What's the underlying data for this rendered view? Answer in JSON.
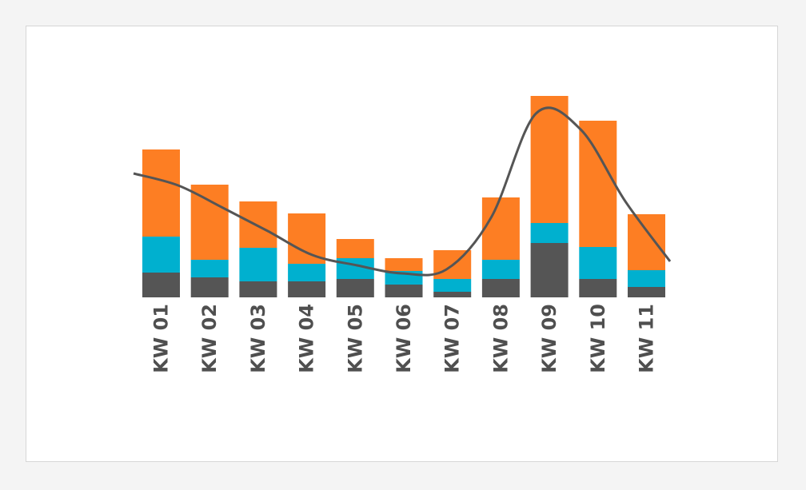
{
  "chart_data": {
    "type": "bar",
    "stacked": true,
    "title": "",
    "xlabel": "",
    "ylabel": "",
    "ylim": [
      0,
      250
    ],
    "grid": false,
    "legend": "none",
    "categories": [
      "KW 01",
      "KW 02",
      "KW 03",
      "KW 04",
      "KW 05",
      "KW 06",
      "KW 07",
      "KW 08",
      "KW 09",
      "KW 10",
      "KW 11"
    ],
    "series": [
      {
        "color": "#555555",
        "values": [
          31,
          25,
          20,
          20,
          23,
          16,
          7,
          23,
          68,
          23,
          13
        ]
      },
      {
        "color": "#00b0cf",
        "values": [
          45,
          22,
          42,
          22,
          26,
          17,
          16,
          24,
          25,
          40,
          21
        ]
      },
      {
        "color": "#fd7e23",
        "values": [
          109,
          94,
          58,
          63,
          24,
          16,
          36,
          78,
          159,
          158,
          70
        ]
      }
    ],
    "trend_line": {
      "color": "#555555",
      "values": [
        155,
        140,
        112,
        83,
        53,
        40,
        30,
        35,
        100,
        230,
        210,
        120,
        45
      ]
    }
  }
}
